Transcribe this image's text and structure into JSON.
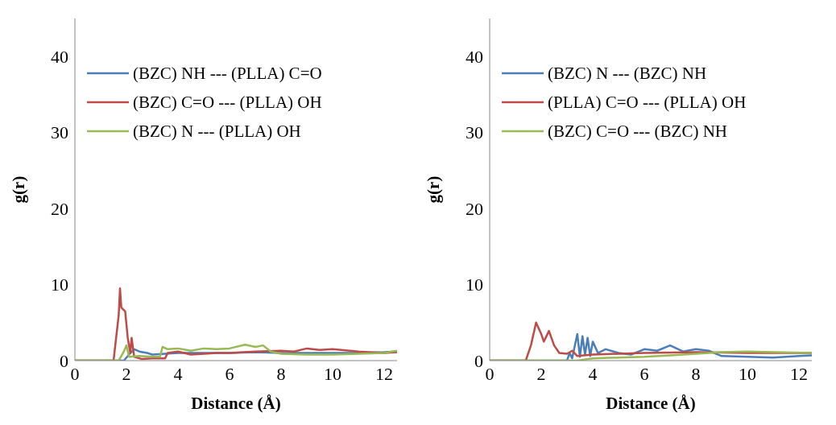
{
  "chart_data": [
    {
      "type": "line",
      "xlabel": "Distance (Å)",
      "ylabel": "g(r)",
      "xlim": [
        0,
        12.5
      ],
      "xticks": [
        0,
        2,
        4,
        6,
        8,
        10,
        12
      ],
      "ylim": [
        0,
        45
      ],
      "yticks": [
        0,
        10,
        20,
        30,
        40
      ],
      "legend": "top left",
      "grid": false,
      "series": [
        {
          "name": "(BZC) NH --- (PLLA) C=O",
          "color": "#4a7ebb",
          "x": [
            0,
            1.9,
            2.1,
            2.3,
            2.5,
            2.8,
            3,
            3.5,
            4,
            5,
            6,
            7,
            8,
            9,
            10,
            11,
            12,
            12.5
          ],
          "values": [
            0,
            0,
            0.8,
            1.5,
            1.2,
            1,
            0.8,
            0.9,
            1,
            1,
            1,
            1.1,
            1,
            1,
            1,
            1,
            1.1,
            1.2
          ]
        },
        {
          "name": "(BZC) C=O --- (PLLA) OH",
          "color": "#be4b48",
          "x": [
            0,
            1.5,
            1.6,
            1.7,
            1.75,
            1.8,
            1.85,
            1.95,
            2.05,
            2.15,
            2.2,
            2.3,
            2.6,
            3,
            3.5,
            3.6,
            4,
            4.5,
            5,
            5.5,
            6,
            7,
            8,
            8.5,
            9,
            9.5,
            10,
            11,
            12,
            12.5
          ],
          "values": [
            0,
            0,
            3,
            6,
            9.5,
            7,
            6.8,
            6.5,
            3,
            1,
            3,
            0.5,
            0.2,
            0.3,
            0.3,
            1,
            1.2,
            0.8,
            0.9,
            1,
            1,
            1.2,
            1.3,
            1.2,
            1.6,
            1.4,
            1.5,
            1.2,
            1,
            1.1
          ]
        },
        {
          "name": "(BZC) N --- (PLLA) OH",
          "color": "#98b954",
          "x": [
            0,
            1.7,
            1.9,
            2,
            2.1,
            2.5,
            3,
            3.3,
            3.4,
            3.6,
            4,
            4.5,
            5,
            5.5,
            6,
            6.6,
            7,
            7.3,
            7.6,
            8,
            9,
            10,
            11,
            12,
            12.5
          ],
          "values": [
            0,
            0,
            1.2,
            2,
            0.5,
            0.6,
            0.5,
            0.5,
            1.8,
            1.5,
            1.6,
            1.3,
            1.6,
            1.5,
            1.6,
            2.1,
            1.8,
            2,
            1.2,
            0.9,
            0.8,
            0.8,
            0.9,
            1,
            1.3
          ]
        }
      ]
    },
    {
      "type": "line",
      "xlabel": "Distance (Å)",
      "ylabel": "g(r)",
      "xlim": [
        0,
        12.5
      ],
      "xticks": [
        0,
        2,
        4,
        6,
        8,
        10,
        12
      ],
      "ylim": [
        0,
        45
      ],
      "yticks": [
        0,
        10,
        20,
        30,
        40
      ],
      "legend": "top left",
      "grid": false,
      "series": [
        {
          "name": "(BZC) N --- (BZC) NH",
          "color": "#4a7ebb",
          "x": [
            0,
            3,
            3.1,
            3.2,
            3.4,
            3.5,
            3.6,
            3.7,
            3.8,
            3.9,
            4,
            4.2,
            4.5,
            5,
            5.5,
            6,
            6.5,
            7,
            7.5,
            8,
            8.5,
            9,
            10,
            11,
            12,
            12.5
          ],
          "values": [
            0,
            0,
            1,
            0.3,
            3.5,
            0.5,
            3.2,
            0.8,
            3,
            0.6,
            2.5,
            1,
            1.5,
            1,
            0.8,
            1.5,
            1.3,
            2,
            1.2,
            1.5,
            1.3,
            0.6,
            0.5,
            0.4,
            0.6,
            0.7
          ]
        },
        {
          "name": "(PLLA) C=O --- (PLLA) OH",
          "color": "#be4b48",
          "x": [
            0,
            1.4,
            1.6,
            1.8,
            2,
            2.1,
            2.3,
            2.5,
            2.7,
            3,
            3.2,
            3.4,
            4,
            5,
            6,
            8,
            10,
            12.5
          ],
          "values": [
            0,
            0,
            2,
            5,
            3.5,
            2.5,
            3.9,
            2,
            1,
            0.9,
            1.3,
            0.6,
            0.8,
            0.9,
            1,
            1.1,
            1,
            1
          ]
        },
        {
          "name": "(BZC) C=O --- (BZC) NH",
          "color": "#98b954",
          "x": [
            0,
            3.4,
            4,
            5,
            6,
            7,
            8,
            9,
            10,
            11,
            12.5
          ],
          "values": [
            0,
            0,
            0.3,
            0.4,
            0.5,
            0.7,
            0.9,
            1.1,
            1.2,
            1.1,
            1
          ]
        }
      ]
    }
  ]
}
